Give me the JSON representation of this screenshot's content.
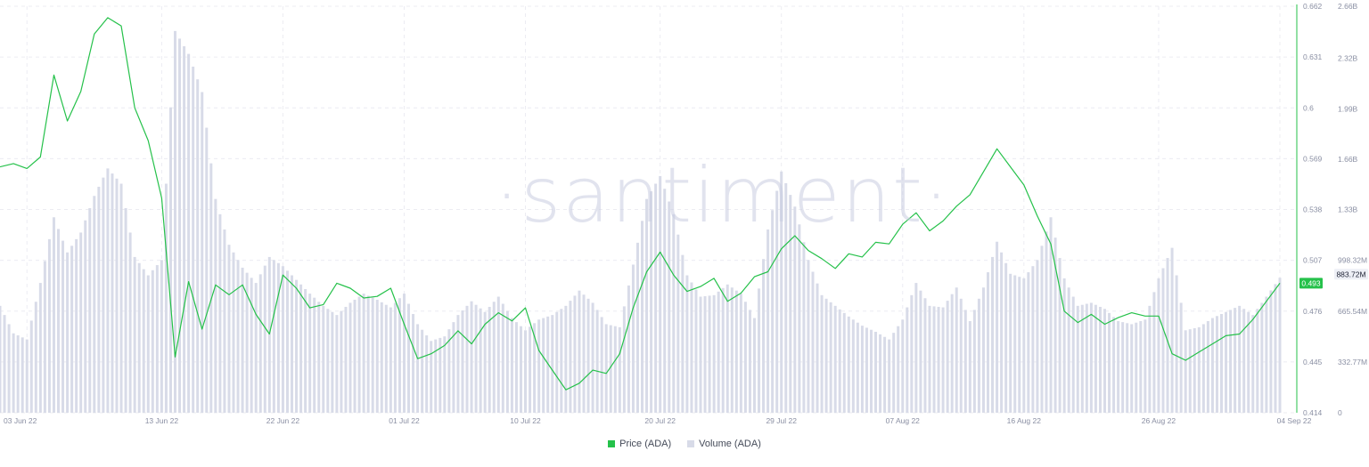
{
  "watermark": "·santiment·",
  "colors": {
    "price": "#25c14a",
    "volume": "#d8dbe8",
    "grid": "#ececf2",
    "axis_text": "#8a8fa3"
  },
  "legend": {
    "price_label": "Price (ADA)",
    "volume_label": "Volume (ADA)"
  },
  "badges": {
    "price": "0.493",
    "volume": "883.72M"
  },
  "chart_data": {
    "type": "line",
    "x_tick_labels": [
      "03 Jun 22",
      "13 Jun 22",
      "22 Jun 22",
      "01 Jul 22",
      "10 Jul 22",
      "20 Jul 22",
      "29 Jul 22",
      "07 Aug 22",
      "16 Aug 22",
      "26 Aug 22",
      "04 Sep 22"
    ],
    "x_tick_dates": [
      "2022-06-03",
      "2022-06-13",
      "2022-06-22",
      "2022-07-01",
      "2022-07-10",
      "2022-07-20",
      "2022-07-29",
      "2022-08-07",
      "2022-08-16",
      "2022-08-26",
      "2022-09-04"
    ],
    "price_axis": {
      "ticks": [
        "0.414",
        "0.445",
        "0.476",
        "0.507",
        "0.538",
        "0.569",
        "0.6",
        "0.631",
        "0.662"
      ],
      "ylim": [
        0.414,
        0.662
      ]
    },
    "volume_axis": {
      "ticks": [
        "0",
        "332.77M",
        "665.54M",
        "998.32M",
        "1.33B",
        "1.66B",
        "1.99B",
        "2.32B",
        "2.66B"
      ],
      "ylim": [
        0,
        2662200000
      ]
    },
    "series": [
      {
        "name": "Price (ADA)",
        "axis": "left",
        "kind": "line",
        "points": [
          [
            "2022-06-01",
            0.564
          ],
          [
            "2022-06-02",
            0.566
          ],
          [
            "2022-06-03",
            0.563
          ],
          [
            "2022-06-04",
            0.57
          ],
          [
            "2022-06-05",
            0.62
          ],
          [
            "2022-06-06",
            0.592
          ],
          [
            "2022-06-07",
            0.61
          ],
          [
            "2022-06-08",
            0.645
          ],
          [
            "2022-06-09",
            0.655
          ],
          [
            "2022-06-10",
            0.65
          ],
          [
            "2022-06-11",
            0.6
          ],
          [
            "2022-06-12",
            0.58
          ],
          [
            "2022-06-13",
            0.545
          ],
          [
            "2022-06-14",
            0.448
          ],
          [
            "2022-06-15",
            0.494
          ],
          [
            "2022-06-16",
            0.465
          ],
          [
            "2022-06-17",
            0.492
          ],
          [
            "2022-06-18",
            0.486
          ],
          [
            "2022-06-19",
            0.492
          ],
          [
            "2022-06-20",
            0.474
          ],
          [
            "2022-06-21",
            0.462
          ],
          [
            "2022-06-22",
            0.498
          ],
          [
            "2022-06-23",
            0.49
          ],
          [
            "2022-06-24",
            0.478
          ],
          [
            "2022-06-25",
            0.48
          ],
          [
            "2022-06-26",
            0.493
          ],
          [
            "2022-06-27",
            0.49
          ],
          [
            "2022-06-28",
            0.484
          ],
          [
            "2022-06-29",
            0.485
          ],
          [
            "2022-06-30",
            0.49
          ],
          [
            "2022-07-01",
            0.468
          ],
          [
            "2022-07-02",
            0.447
          ],
          [
            "2022-07-03",
            0.45
          ],
          [
            "2022-07-04",
            0.455
          ],
          [
            "2022-07-05",
            0.464
          ],
          [
            "2022-07-06",
            0.456
          ],
          [
            "2022-07-07",
            0.468
          ],
          [
            "2022-07-08",
            0.475
          ],
          [
            "2022-07-09",
            0.47
          ],
          [
            "2022-07-10",
            0.478
          ],
          [
            "2022-07-11",
            0.452
          ],
          [
            "2022-07-12",
            0.44
          ],
          [
            "2022-07-13",
            0.428
          ],
          [
            "2022-07-14",
            0.432
          ],
          [
            "2022-07-15",
            0.44
          ],
          [
            "2022-07-16",
            0.438
          ],
          [
            "2022-07-17",
            0.45
          ],
          [
            "2022-07-18",
            0.478
          ],
          [
            "2022-07-19",
            0.5
          ],
          [
            "2022-07-20",
            0.512
          ],
          [
            "2022-07-21",
            0.498
          ],
          [
            "2022-07-22",
            0.488
          ],
          [
            "2022-07-23",
            0.491
          ],
          [
            "2022-07-24",
            0.496
          ],
          [
            "2022-07-25",
            0.482
          ],
          [
            "2022-07-26",
            0.487
          ],
          [
            "2022-07-27",
            0.497
          ],
          [
            "2022-07-28",
            0.5
          ],
          [
            "2022-07-29",
            0.514
          ],
          [
            "2022-07-30",
            0.522
          ],
          [
            "2022-07-31",
            0.513
          ],
          [
            "2022-08-01",
            0.508
          ],
          [
            "2022-08-02",
            0.502
          ],
          [
            "2022-08-03",
            0.511
          ],
          [
            "2022-08-04",
            0.509
          ],
          [
            "2022-08-05",
            0.518
          ],
          [
            "2022-08-06",
            0.517
          ],
          [
            "2022-08-07",
            0.529
          ],
          [
            "2022-08-08",
            0.536
          ],
          [
            "2022-08-09",
            0.525
          ],
          [
            "2022-08-10",
            0.531
          ],
          [
            "2022-08-11",
            0.54
          ],
          [
            "2022-08-12",
            0.547
          ],
          [
            "2022-08-13",
            0.561
          ],
          [
            "2022-08-14",
            0.575
          ],
          [
            "2022-08-15",
            0.564
          ],
          [
            "2022-08-16",
            0.553
          ],
          [
            "2022-08-17",
            0.534
          ],
          [
            "2022-08-18",
            0.517
          ],
          [
            "2022-08-19",
            0.476
          ],
          [
            "2022-08-20",
            0.469
          ],
          [
            "2022-08-21",
            0.474
          ],
          [
            "2022-08-22",
            0.468
          ],
          [
            "2022-08-23",
            0.472
          ],
          [
            "2022-08-24",
            0.475
          ],
          [
            "2022-08-25",
            0.473
          ],
          [
            "2022-08-26",
            0.473
          ],
          [
            "2022-08-27",
            0.45
          ],
          [
            "2022-08-28",
            0.446
          ],
          [
            "2022-08-29",
            0.451
          ],
          [
            "2022-08-30",
            0.456
          ],
          [
            "2022-08-31",
            0.461
          ],
          [
            "2022-09-01",
            0.462
          ],
          [
            "2022-09-02",
            0.471
          ],
          [
            "2022-09-03",
            0.482
          ],
          [
            "2022-09-04",
            0.493
          ]
        ]
      },
      {
        "name": "Volume (ADA)",
        "axis": "right",
        "kind": "bar",
        "points": [
          [
            "2022-06-01",
            700000000
          ],
          [
            "2022-06-02",
            520000000
          ],
          [
            "2022-06-03",
            480000000
          ],
          [
            "2022-06-04",
            850000000
          ],
          [
            "2022-06-05",
            1280000000
          ],
          [
            "2022-06-06",
            1050000000
          ],
          [
            "2022-06-07",
            1180000000
          ],
          [
            "2022-06-08",
            1420000000
          ],
          [
            "2022-06-09",
            1600000000
          ],
          [
            "2022-06-10",
            1500000000
          ],
          [
            "2022-06-11",
            1020000000
          ],
          [
            "2022-06-12",
            900000000
          ],
          [
            "2022-06-13",
            1000000000
          ],
          [
            "2022-06-14",
            2500000000
          ],
          [
            "2022-06-15",
            2350000000
          ],
          [
            "2022-06-16",
            2100000000
          ],
          [
            "2022-06-17",
            1400000000
          ],
          [
            "2022-06-18",
            1100000000
          ],
          [
            "2022-06-19",
            950000000
          ],
          [
            "2022-06-20",
            850000000
          ],
          [
            "2022-06-21",
            1020000000
          ],
          [
            "2022-06-22",
            960000000
          ],
          [
            "2022-06-23",
            870000000
          ],
          [
            "2022-06-24",
            780000000
          ],
          [
            "2022-06-25",
            700000000
          ],
          [
            "2022-06-26",
            640000000
          ],
          [
            "2022-06-27",
            720000000
          ],
          [
            "2022-06-28",
            780000000
          ],
          [
            "2022-06-29",
            740000000
          ],
          [
            "2022-06-30",
            690000000
          ],
          [
            "2022-07-01",
            780000000
          ],
          [
            "2022-07-02",
            580000000
          ],
          [
            "2022-07-03",
            470000000
          ],
          [
            "2022-07-04",
            500000000
          ],
          [
            "2022-07-05",
            640000000
          ],
          [
            "2022-07-06",
            730000000
          ],
          [
            "2022-07-07",
            660000000
          ],
          [
            "2022-07-08",
            760000000
          ],
          [
            "2022-07-09",
            620000000
          ],
          [
            "2022-07-10",
            540000000
          ],
          [
            "2022-07-11",
            610000000
          ],
          [
            "2022-07-12",
            640000000
          ],
          [
            "2022-07-13",
            700000000
          ],
          [
            "2022-07-14",
            800000000
          ],
          [
            "2022-07-15",
            720000000
          ],
          [
            "2022-07-16",
            580000000
          ],
          [
            "2022-07-17",
            560000000
          ],
          [
            "2022-07-18",
            970000000
          ],
          [
            "2022-07-19",
            1400000000
          ],
          [
            "2022-07-20",
            1550000000
          ],
          [
            "2022-07-21",
            1300000000
          ],
          [
            "2022-07-22",
            900000000
          ],
          [
            "2022-07-23",
            760000000
          ],
          [
            "2022-07-24",
            770000000
          ],
          [
            "2022-07-25",
            840000000
          ],
          [
            "2022-07-26",
            780000000
          ],
          [
            "2022-07-27",
            620000000
          ],
          [
            "2022-07-28",
            1200000000
          ],
          [
            "2022-07-29",
            1580000000
          ],
          [
            "2022-07-30",
            1350000000
          ],
          [
            "2022-07-31",
            1000000000
          ],
          [
            "2022-08-01",
            770000000
          ],
          [
            "2022-08-02",
            700000000
          ],
          [
            "2022-08-03",
            630000000
          ],
          [
            "2022-08-04",
            570000000
          ],
          [
            "2022-08-05",
            530000000
          ],
          [
            "2022-08-06",
            480000000
          ],
          [
            "2022-08-07",
            610000000
          ],
          [
            "2022-08-08",
            850000000
          ],
          [
            "2022-08-09",
            700000000
          ],
          [
            "2022-08-10",
            690000000
          ],
          [
            "2022-08-11",
            820000000
          ],
          [
            "2022-08-12",
            600000000
          ],
          [
            "2022-08-13",
            820000000
          ],
          [
            "2022-08-14",
            1120000000
          ],
          [
            "2022-08-15",
            910000000
          ],
          [
            "2022-08-16",
            880000000
          ],
          [
            "2022-08-17",
            1000000000
          ],
          [
            "2022-08-18",
            1280000000
          ],
          [
            "2022-08-19",
            880000000
          ],
          [
            "2022-08-20",
            700000000
          ],
          [
            "2022-08-21",
            720000000
          ],
          [
            "2022-08-22",
            680000000
          ],
          [
            "2022-08-23",
            600000000
          ],
          [
            "2022-08-24",
            580000000
          ],
          [
            "2022-08-25",
            610000000
          ],
          [
            "2022-08-26",
            880000000
          ],
          [
            "2022-08-27",
            1080000000
          ],
          [
            "2022-08-28",
            540000000
          ],
          [
            "2022-08-29",
            560000000
          ],
          [
            "2022-08-30",
            620000000
          ],
          [
            "2022-08-31",
            660000000
          ],
          [
            "2022-09-01",
            700000000
          ],
          [
            "2022-09-02",
            640000000
          ],
          [
            "2022-09-03",
            760000000
          ],
          [
            "2022-09-04",
            883720000
          ]
        ]
      }
    ],
    "legend_position": "bottom-center",
    "grid": true
  }
}
